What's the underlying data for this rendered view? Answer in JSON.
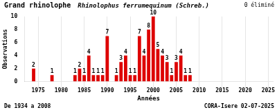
{
  "chart_data": {
    "type": "bar",
    "title": "Grand rhinolophe",
    "subtitle": "Rhinolophus ferrumequinum (Schreb.)",
    "annotations": [
      "0 éliminé",
      "De 1934 a 2008",
      "CORA-Isere 02-07-2025"
    ],
    "xlabel": "Années",
    "ylabel": "Observations",
    "x": [
      1974,
      1978,
      1983,
      1984,
      1985,
      1986,
      1987,
      1988,
      1989,
      1990,
      1992,
      1993,
      1994,
      1995,
      1996,
      1997,
      1998,
      1999,
      2000,
      2001,
      2002,
      2003,
      2004,
      2005,
      2006,
      2007,
      2008
    ],
    "values": [
      2,
      1,
      1,
      2,
      1,
      4,
      1,
      1,
      1,
      7,
      1,
      3,
      4,
      1,
      1,
      7,
      4,
      8,
      10,
      5,
      4,
      3,
      1,
      3,
      4,
      1,
      1
    ],
    "color": "#dd0000",
    "xlim": [
      1972,
      2026
    ],
    "xticks": [
      1975,
      1980,
      1985,
      1990,
      1995,
      2000,
      2005,
      2010,
      2015,
      2020,
      2025
    ],
    "ylim": [
      0,
      10
    ],
    "yticks": [
      0,
      2,
      4,
      6,
      8,
      10
    ],
    "grid": "x",
    "data_labels": true
  }
}
